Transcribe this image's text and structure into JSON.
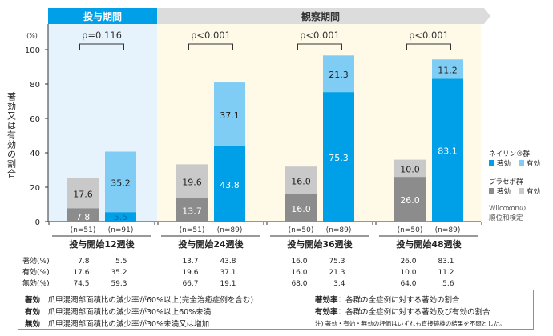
{
  "chart_data": {
    "type": "bar",
    "stacked": true,
    "ylabel": "著効又は有効の割合",
    "yunit": "(%)",
    "ylim": [
      0,
      100
    ],
    "yticks": [
      0,
      20,
      40,
      60,
      80,
      100
    ],
    "phases": [
      {
        "label": "投与期間",
        "color": "#00a0e9"
      },
      {
        "label": "観察期間",
        "color": "#dcdcdc"
      }
    ],
    "groups": [
      {
        "label": "投与開始12週後",
        "p": "p=0.116",
        "placebo": {
          "n": "(n=51)",
          "marked": 7.8,
          "effective": 17.6,
          "none": 74.5
        },
        "neiline": {
          "n": "(n=91)",
          "marked": 5.5,
          "effective": 35.2,
          "none": 59.3
        }
      },
      {
        "label": "投与開始24週後",
        "p": "p<0.001",
        "placebo": {
          "n": "(n=51)",
          "marked": 13.7,
          "effective": 19.6,
          "none": 66.7
        },
        "neiline": {
          "n": "(n=89)",
          "marked": 43.8,
          "effective": 37.1,
          "none": 19.1
        }
      },
      {
        "label": "投与開始36週後",
        "p": "p<0.001",
        "placebo": {
          "n": "(n=50)",
          "marked": 16.0,
          "effective": 16.0,
          "none": 68.0
        },
        "neiline": {
          "n": "(n=89)",
          "marked": 75.3,
          "effective": 21.3,
          "none": 3.4
        }
      },
      {
        "label": "投与開始48週後",
        "p": "p<0.001",
        "placebo": {
          "n": "(n=50)",
          "marked": 26.0,
          "effective": 10.0,
          "none": 64.0
        },
        "neiline": {
          "n": "(n=89)",
          "marked": 83.1,
          "effective": 11.2,
          "none": 5.6
        }
      }
    ],
    "legend": {
      "neiline_title": "ネイリン®群",
      "placebo_title": "プラセボ群",
      "marked": "著効",
      "effective": "有効",
      "test": [
        "Wilcoxonの",
        "順位和検定"
      ]
    },
    "colors": {
      "neiline_marked": "#00a0e9",
      "neiline_effective": "#7fcdf4",
      "placebo_marked": "#8c8c8c",
      "placebo_effective": "#c9c9c9",
      "treat_bg": "#e6f3fc",
      "obs_bg": "#fff9e8"
    },
    "table": {
      "rows": [
        "著効(%)",
        "有効(%)",
        "無効(%)"
      ]
    }
  },
  "notes": {
    "left": [
      {
        "term": "著効",
        "text": "：爪甲混濁部面積比の減少率が60%以上(完全治癒症例を含む)"
      },
      {
        "term": "有効",
        "text": "：爪甲混濁部面積比の減少率が30%以上60%未満"
      },
      {
        "term": "無効",
        "text": "：爪甲混濁部面積比の減少率が30%未満又は増加"
      }
    ],
    "right": [
      {
        "term": "著効率",
        "text": "：各群の全症例に対する著効の割合"
      },
      {
        "term": "有効率",
        "text": "：各群の全症例に対する著効及び有効の割合"
      }
    ],
    "footnote": "注) 著効・有効・無効の評価はいずれも直接鏡検の結果を不問とした。"
  }
}
